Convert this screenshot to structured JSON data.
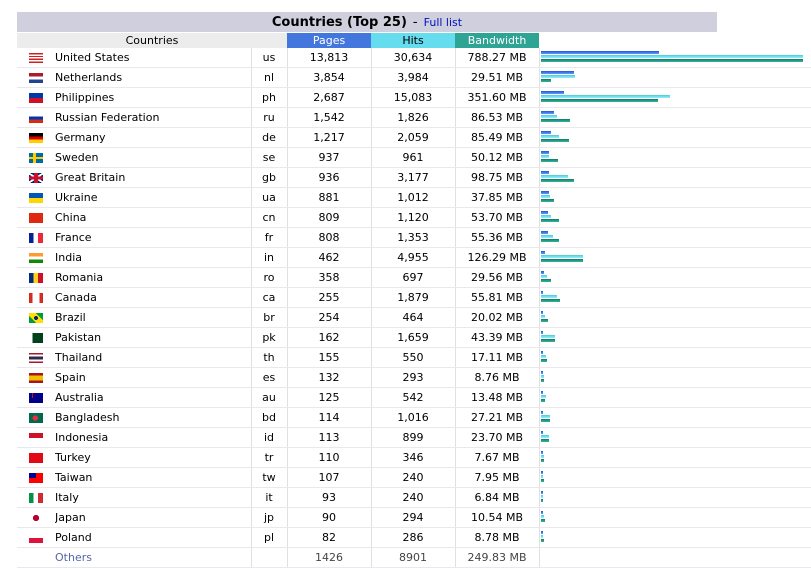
{
  "header": {
    "title": "Countries (Top 25)",
    "separator": "-",
    "full_list_link": "Full list"
  },
  "columns": {
    "countries": "Countries",
    "pages": "Pages",
    "hits": "Hits",
    "bandwidth": "Bandwidth"
  },
  "colors": {
    "pages": "#4477dd",
    "hits": "#66ddee",
    "bandwidth": "#2ea495"
  },
  "rows": [
    {
      "flag_icon": "us-flag-icon",
      "country": "United States",
      "code": "us",
      "pages": "13,813",
      "hits": "30,634",
      "bandwidth": "788.27 MB",
      "pages_n": 13813,
      "hits_n": 30634,
      "bw_mb": 788.27
    },
    {
      "flag_icon": "nl-flag-icon",
      "country": "Netherlands",
      "code": "nl",
      "pages": "3,854",
      "hits": "3,984",
      "bandwidth": "29.51 MB",
      "pages_n": 3854,
      "hits_n": 3984,
      "bw_mb": 29.51
    },
    {
      "flag_icon": "ph-flag-icon",
      "country": "Philippines",
      "code": "ph",
      "pages": "2,687",
      "hits": "15,083",
      "bandwidth": "351.60 MB",
      "pages_n": 2687,
      "hits_n": 15083,
      "bw_mb": 351.6
    },
    {
      "flag_icon": "ru-flag-icon",
      "country": "Russian Federation",
      "code": "ru",
      "pages": "1,542",
      "hits": "1,826",
      "bandwidth": "86.53 MB",
      "pages_n": 1542,
      "hits_n": 1826,
      "bw_mb": 86.53
    },
    {
      "flag_icon": "de-flag-icon",
      "country": "Germany",
      "code": "de",
      "pages": "1,217",
      "hits": "2,059",
      "bandwidth": "85.49 MB",
      "pages_n": 1217,
      "hits_n": 2059,
      "bw_mb": 85.49
    },
    {
      "flag_icon": "se-flag-icon",
      "country": "Sweden",
      "code": "se",
      "pages": "937",
      "hits": "961",
      "bandwidth": "50.12 MB",
      "pages_n": 937,
      "hits_n": 961,
      "bw_mb": 50.12
    },
    {
      "flag_icon": "gb-flag-icon",
      "country": "Great Britain",
      "code": "gb",
      "pages": "936",
      "hits": "3,177",
      "bandwidth": "98.75 MB",
      "pages_n": 936,
      "hits_n": 3177,
      "bw_mb": 98.75
    },
    {
      "flag_icon": "ua-flag-icon",
      "country": "Ukraine",
      "code": "ua",
      "pages": "881",
      "hits": "1,012",
      "bandwidth": "37.85 MB",
      "pages_n": 881,
      "hits_n": 1012,
      "bw_mb": 37.85
    },
    {
      "flag_icon": "cn-flag-icon",
      "country": "China",
      "code": "cn",
      "pages": "809",
      "hits": "1,120",
      "bandwidth": "53.70 MB",
      "pages_n": 809,
      "hits_n": 1120,
      "bw_mb": 53.7
    },
    {
      "flag_icon": "fr-flag-icon",
      "country": "France",
      "code": "fr",
      "pages": "808",
      "hits": "1,353",
      "bandwidth": "55.36 MB",
      "pages_n": 808,
      "hits_n": 1353,
      "bw_mb": 55.36
    },
    {
      "flag_icon": "in-flag-icon",
      "country": "India",
      "code": "in",
      "pages": "462",
      "hits": "4,955",
      "bandwidth": "126.29 MB",
      "pages_n": 462,
      "hits_n": 4955,
      "bw_mb": 126.29
    },
    {
      "flag_icon": "ro-flag-icon",
      "country": "Romania",
      "code": "ro",
      "pages": "358",
      "hits": "697",
      "bandwidth": "29.56 MB",
      "pages_n": 358,
      "hits_n": 697,
      "bw_mb": 29.56
    },
    {
      "flag_icon": "ca-flag-icon",
      "country": "Canada",
      "code": "ca",
      "pages": "255",
      "hits": "1,879",
      "bandwidth": "55.81 MB",
      "pages_n": 255,
      "hits_n": 1879,
      "bw_mb": 55.81
    },
    {
      "flag_icon": "br-flag-icon",
      "country": "Brazil",
      "code": "br",
      "pages": "254",
      "hits": "464",
      "bandwidth": "20.02 MB",
      "pages_n": 254,
      "hits_n": 464,
      "bw_mb": 20.02
    },
    {
      "flag_icon": "pk-flag-icon",
      "country": "Pakistan",
      "code": "pk",
      "pages": "162",
      "hits": "1,659",
      "bandwidth": "43.39 MB",
      "pages_n": 162,
      "hits_n": 1659,
      "bw_mb": 43.39
    },
    {
      "flag_icon": "th-flag-icon",
      "country": "Thailand",
      "code": "th",
      "pages": "155",
      "hits": "550",
      "bandwidth": "17.11 MB",
      "pages_n": 155,
      "hits_n": 550,
      "bw_mb": 17.11
    },
    {
      "flag_icon": "es-flag-icon",
      "country": "Spain",
      "code": "es",
      "pages": "132",
      "hits": "293",
      "bandwidth": "8.76 MB",
      "pages_n": 132,
      "hits_n": 293,
      "bw_mb": 8.76
    },
    {
      "flag_icon": "au-flag-icon",
      "country": "Australia",
      "code": "au",
      "pages": "125",
      "hits": "542",
      "bandwidth": "13.48 MB",
      "pages_n": 125,
      "hits_n": 542,
      "bw_mb": 13.48
    },
    {
      "flag_icon": "bd-flag-icon",
      "country": "Bangladesh",
      "code": "bd",
      "pages": "114",
      "hits": "1,016",
      "bandwidth": "27.21 MB",
      "pages_n": 114,
      "hits_n": 1016,
      "bw_mb": 27.21
    },
    {
      "flag_icon": "id-flag-icon",
      "country": "Indonesia",
      "code": "id",
      "pages": "113",
      "hits": "899",
      "bandwidth": "23.70 MB",
      "pages_n": 113,
      "hits_n": 899,
      "bw_mb": 23.7
    },
    {
      "flag_icon": "tr-flag-icon",
      "country": "Turkey",
      "code": "tr",
      "pages": "110",
      "hits": "346",
      "bandwidth": "7.67 MB",
      "pages_n": 110,
      "hits_n": 346,
      "bw_mb": 7.67
    },
    {
      "flag_icon": "tw-flag-icon",
      "country": "Taiwan",
      "code": "tw",
      "pages": "107",
      "hits": "240",
      "bandwidth": "7.95 MB",
      "pages_n": 107,
      "hits_n": 240,
      "bw_mb": 7.95
    },
    {
      "flag_icon": "it-flag-icon",
      "country": "Italy",
      "code": "it",
      "pages": "93",
      "hits": "240",
      "bandwidth": "6.84 MB",
      "pages_n": 93,
      "hits_n": 240,
      "bw_mb": 6.84
    },
    {
      "flag_icon": "jp-flag-icon",
      "country": "Japan",
      "code": "jp",
      "pages": "90",
      "hits": "294",
      "bandwidth": "10.54 MB",
      "pages_n": 90,
      "hits_n": 294,
      "bw_mb": 10.54
    },
    {
      "flag_icon": "pl-flag-icon",
      "country": "Poland",
      "code": "pl",
      "pages": "82",
      "hits": "286",
      "bandwidth": "8.78 MB",
      "pages_n": 82,
      "hits_n": 286,
      "bw_mb": 8.78
    }
  ],
  "others": {
    "label": "Others",
    "pages": "1426",
    "hits": "8901",
    "bandwidth": "249.83 MB"
  }
}
